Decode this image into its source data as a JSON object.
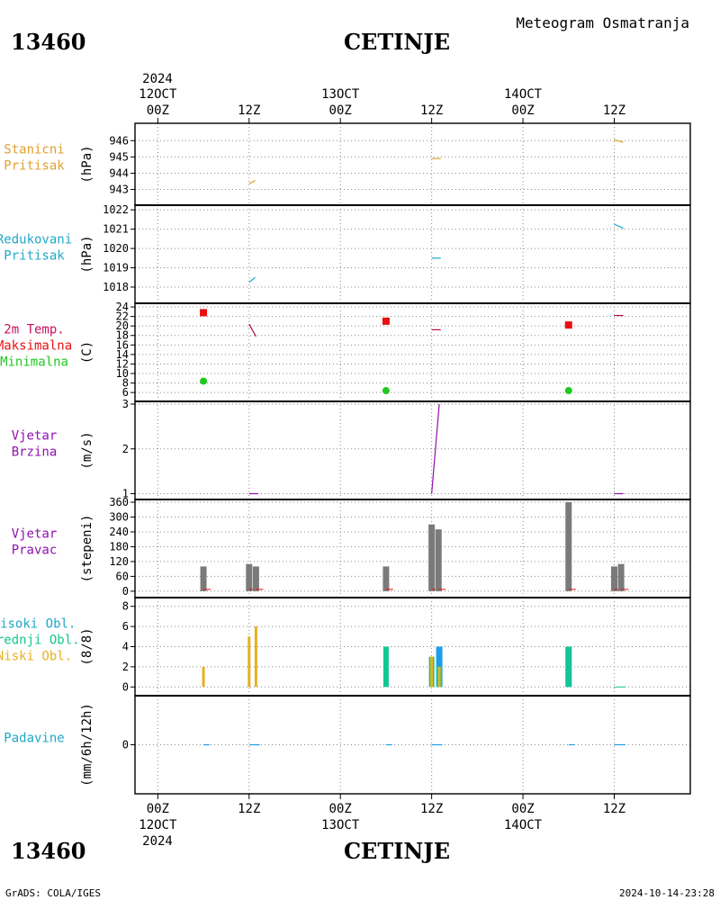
{
  "header": {
    "station_id": "13460",
    "station_name": "CETINJE",
    "product_title": "Meteogram Osmatranja"
  },
  "time_axis": {
    "year": "2024",
    "major_labels": [
      {
        "hour": 0,
        "top": "00Z",
        "date": "12OCT"
      },
      {
        "hour": 12,
        "top": "12Z",
        "date": ""
      },
      {
        "hour": 24,
        "top": "00Z",
        "date": "13OCT"
      },
      {
        "hour": 36,
        "top": "12Z",
        "date": ""
      },
      {
        "hour": 48,
        "top": "00Z",
        "date": "14OCT"
      },
      {
        "hour": 60,
        "top": "12Z",
        "date": ""
      }
    ],
    "range_hours": [
      -3,
      70
    ]
  },
  "footer": {
    "credit": "GrADS: COLA/IGES",
    "timestamp": "2024-10-14-23:28"
  },
  "colors": {
    "pressure": "#e0a030",
    "reduced": "#20a8c8",
    "tmax": "#e81010",
    "tmin": "#20c820",
    "wind": "#9010b0",
    "bar_gray": "#7a7a7a",
    "high_cloud": "#1e9ee8",
    "mid_cloud": "#10c890",
    "low_cloud": "#e8b020",
    "precip": "#1e9ee8",
    "grid": "#8a8a8a"
  },
  "chart_data": [
    {
      "type": "line",
      "panel": "station_pressure",
      "labels": [
        "Stanicni",
        "Pritisak"
      ],
      "ylabel": "(hPa)",
      "ylim": [
        942.2,
        946.9
      ],
      "yticks": [
        943,
        944,
        945,
        946
      ],
      "series": [
        {
          "name": "Stanicni Pritisak",
          "segments": [
            [
              [
                12.0,
                943.35
              ],
              [
                12.8,
                943.55
              ]
            ],
            [
              [
                36.0,
                944.9
              ],
              [
                37.2,
                944.9
              ]
            ],
            [
              [
                60.0,
                946.05
              ],
              [
                61.2,
                945.9
              ]
            ]
          ]
        }
      ]
    },
    {
      "type": "line",
      "panel": "reduced_pressure",
      "labels": [
        "Redukovani",
        "Pritisak"
      ],
      "ylabel": "(hPa)",
      "ylim": [
        1017.3,
        1022.1
      ],
      "yticks": [
        1018,
        1019,
        1020,
        1021,
        1022
      ],
      "series": [
        {
          "name": "Redukovani Pritisak",
          "segments": [
            [
              [
                12.0,
                1018.25
              ],
              [
                12.8,
                1018.5
              ]
            ],
            [
              [
                36.0,
                1019.5
              ],
              [
                37.2,
                1019.5
              ]
            ],
            [
              [
                60.0,
                1021.25
              ],
              [
                61.2,
                1021.05
              ]
            ]
          ]
        }
      ]
    },
    {
      "type": "scatter",
      "panel": "temperature",
      "labels": [
        "2m Temp.",
        "Maksimalna",
        "Minimalna"
      ],
      "ylabel": "(C)",
      "ylim": [
        4.7,
        24.2
      ],
      "yticks": [
        6,
        8,
        10,
        12,
        14,
        16,
        18,
        20,
        22,
        24
      ],
      "max_points": [
        [
          6,
          22.8
        ],
        [
          30,
          21.0
        ],
        [
          54,
          20.2
        ]
      ],
      "min_points": [
        [
          6,
          8.4
        ],
        [
          30,
          6.4
        ],
        [
          54,
          6.4
        ]
      ],
      "temp_segments": [
        [
          [
            12.0,
            20.4
          ],
          [
            12.9,
            17.8
          ]
        ],
        [
          [
            36.0,
            19.2
          ],
          [
            37.2,
            19.2
          ]
        ],
        [
          [
            60.0,
            22.2
          ],
          [
            61.2,
            22.2
          ]
        ]
      ]
    },
    {
      "type": "line",
      "panel": "wind_speed",
      "labels": [
        "Vjetar",
        "Brzina"
      ],
      "ylabel": "(m/s)",
      "ylim": [
        0.93,
        3.0
      ],
      "yticks": [
        1,
        2,
        3
      ],
      "series": [
        {
          "name": "Vjetar Brzina",
          "segments": [
            [
              [
                12.0,
                1.0
              ],
              [
                13.2,
                1.0
              ]
            ],
            [
              [
                36.0,
                1.0
              ],
              [
                37.0,
                3.0
              ]
            ],
            [
              [
                60.0,
                1.0
              ],
              [
                61.2,
                1.0
              ]
            ]
          ]
        }
      ]
    },
    {
      "type": "bar",
      "panel": "wind_direction",
      "labels": [
        "Vjetar",
        "Pravac"
      ],
      "ylabel": "(stepeni)",
      "ylim": [
        -15,
        360
      ],
      "yticks": [
        0,
        60,
        120,
        180,
        240,
        300,
        360
      ],
      "bars": [
        {
          "t": 6,
          "value": 100
        },
        {
          "t": 12,
          "value": 110
        },
        {
          "t": 12.9,
          "value": 100
        },
        {
          "t": 30,
          "value": 100
        },
        {
          "t": 36,
          "value": 270
        },
        {
          "t": 36.9,
          "value": 250
        },
        {
          "t": 54,
          "value": 360
        },
        {
          "t": 60,
          "value": 100
        },
        {
          "t": 60.9,
          "value": 110
        }
      ]
    },
    {
      "type": "bar",
      "panel": "clouds",
      "labels": [
        "Visoki Obl.",
        "Srednji Obl.",
        "Niski Obl."
      ],
      "ylabel": "(8/8)",
      "ylim": [
        -0.6,
        8.6
      ],
      "yticks": [
        0,
        2,
        4,
        6,
        8
      ],
      "series": [
        {
          "name": "Visoki Obl.",
          "points": [
            [
              37.0,
              4
            ],
            [
              54.0,
              4
            ]
          ]
        },
        {
          "name": "Srednji Obl.",
          "points": [
            [
              30.0,
              4
            ],
            [
              36.0,
              3
            ],
            [
              37.0,
              2
            ],
            [
              54.0,
              4
            ]
          ]
        },
        {
          "name": "Niski Obl.",
          "points": [
            [
              6.0,
              2
            ],
            [
              12.0,
              5
            ],
            [
              12.9,
              6
            ],
            [
              36.0,
              3
            ],
            [
              37.0,
              2
            ]
          ]
        }
      ]
    },
    {
      "type": "line",
      "panel": "precipitation",
      "labels": [
        "Padavine"
      ],
      "ylabel": "(mm/6h/12h)",
      "ylim": [
        -1,
        1
      ],
      "yticks": [
        0
      ],
      "series": [
        {
          "name": "Padavine",
          "segments": [
            [
              [
                6.0,
                0
              ],
              [
                6.8,
                0
              ]
            ],
            [
              [
                12.0,
                0
              ],
              [
                13.4,
                0
              ]
            ],
            [
              [
                30.0,
                0
              ],
              [
                30.8,
                0
              ]
            ],
            [
              [
                36.0,
                0
              ],
              [
                37.4,
                0
              ]
            ],
            [
              [
                54.0,
                0
              ],
              [
                54.8,
                0
              ]
            ],
            [
              [
                60.0,
                0
              ],
              [
                61.4,
                0
              ]
            ]
          ]
        }
      ]
    }
  ]
}
